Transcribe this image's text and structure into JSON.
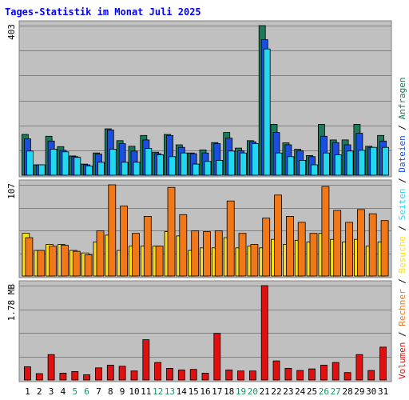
{
  "window": {
    "title": "Tages-Statistik im Monat Juli 2025"
  },
  "colors": {
    "background": "#c0c0c0",
    "border": "#808080",
    "anfragen": "#1a7a5a",
    "dateien": "#1a4ee0",
    "seiten": "#22d8f0",
    "besuche": "#f8e020",
    "rechner": "#f07818",
    "volumen": "#e01010",
    "weekend_day_label": "#1a9060",
    "weekday_label": "#000000"
  },
  "chart_data": {
    "type": "bar",
    "title": "Tages-Statistik im Monat Juli 2025",
    "categories": [
      "1",
      "2",
      "3",
      "4",
      "5",
      "6",
      "7",
      "8",
      "9",
      "10",
      "11",
      "12",
      "13",
      "14",
      "15",
      "16",
      "17",
      "18",
      "19",
      "20",
      "21",
      "22",
      "23",
      "24",
      "25",
      "26",
      "27",
      "28",
      "29",
      "30",
      "31"
    ],
    "weekend_days": [
      "5",
      "6",
      "12",
      "13",
      "19",
      "20",
      "26",
      "27"
    ],
    "legend": {
      "text": "Volumen / Rechner / Besuche / Seiten / Dateien / Anfragen",
      "parts": [
        "Volumen",
        " / ",
        "Rechner",
        " / ",
        "Besuche",
        " / ",
        "Seiten",
        " / ",
        "Dateien",
        " / ",
        "Anfragen"
      ],
      "placement": "right, vertical"
    },
    "panels": [
      {
        "name": "top",
        "ymax_label": "403",
        "ylim": [
          0,
          403
        ],
        "series": [
          {
            "name": "Anfragen",
            "values": [
              110,
              28,
              105,
              77,
              52,
              30,
              60,
              125,
              93,
              78,
              107,
              62,
              110,
              82,
              60,
              68,
              88,
              115,
              73,
              93,
              403,
              137,
              87,
              70,
              53,
              137,
              95,
              95,
              137,
              78,
              107
            ]
          },
          {
            "name": "Dateien",
            "values": [
              98,
              28,
              92,
              67,
              50,
              28,
              57,
              122,
              85,
              65,
              95,
              58,
              107,
              75,
              58,
              60,
              85,
              100,
              66,
              90,
              365,
              115,
              82,
              66,
              50,
              105,
              88,
              82,
              113,
              75,
              92
            ]
          },
          {
            "name": "Seiten",
            "values": [
              65,
              28,
              70,
              63,
              48,
              25,
              35,
              70,
              35,
              35,
              72,
              55,
              50,
              60,
              30,
              37,
              40,
              65,
              60,
              85,
              340,
              60,
              50,
              40,
              28,
              60,
              55,
              65,
              67,
              75,
              75
            ]
          }
        ]
      },
      {
        "name": "middle",
        "ymax_label": "107",
        "ylim": [
          0,
          107
        ],
        "series": [
          {
            "name": "Besuche",
            "values": [
              50,
              30,
              37,
              37,
              30,
              27,
              40,
              48,
              30,
              35,
              35,
              35,
              52,
              47,
              30,
              33,
              33,
              45,
              33,
              35,
              33,
              43,
              37,
              42,
              40,
              50,
              43,
              40,
              43,
              35,
              40
            ]
          },
          {
            "name": "Rechner",
            "values": [
              45,
              30,
              35,
              36,
              29,
              25,
              53,
              107,
              82,
              50,
              70,
              35,
              104,
              72,
              53,
              52,
              53,
              88,
              50,
              37,
              68,
              95,
              70,
              63,
              50,
              105,
              77,
              63,
              78,
              73,
              65
            ]
          }
        ]
      },
      {
        "name": "bottom",
        "ymax_label": "1.78 MB",
        "ylim": [
          0,
          1.78
        ],
        "series": [
          {
            "name": "Volumen",
            "values": [
              0.25,
              0.12,
              0.48,
              0.13,
              0.16,
              0.1,
              0.23,
              0.28,
              0.26,
              0.17,
              0.76,
              0.33,
              0.22,
              0.19,
              0.2,
              0.13,
              0.88,
              0.19,
              0.17,
              0.17,
              1.78,
              0.36,
              0.22,
              0.18,
              0.21,
              0.28,
              0.33,
              0.14,
              0.48,
              0.18,
              0.62
            ]
          }
        ]
      }
    ]
  }
}
